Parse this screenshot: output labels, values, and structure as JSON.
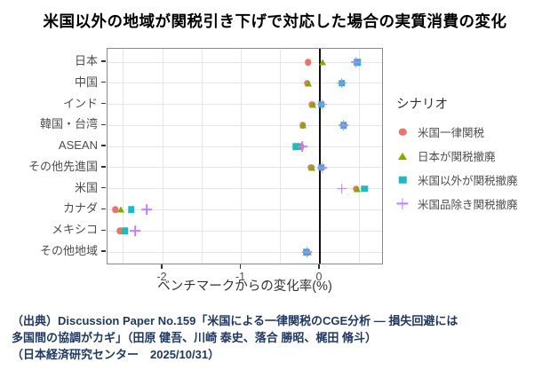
{
  "title": "米国以外の地域が関税引き下げで対応した場合の実質消費の変化",
  "chart_data": {
    "type": "scatter",
    "orientation": "horizontal-dotplot",
    "categories": [
      "日本",
      "中国",
      "インド",
      "韓国・台湾",
      "ASEAN",
      "その他先進国",
      "米国",
      "カナダ",
      "メキシコ",
      "その他地域"
    ],
    "series": [
      {
        "name": "米国一律関税",
        "marker": "circle",
        "color": "#e8746c",
        "values": [
          -0.15,
          -0.16,
          -0.1,
          -0.22,
          -0.24,
          -0.11,
          0.46,
          -2.6,
          -2.54,
          -0.16
        ]
      },
      {
        "name": "日本が関税撤廃",
        "marker": "triangle",
        "color": "#7cae00",
        "values": [
          0.03,
          -0.15,
          -0.09,
          -0.21,
          -0.25,
          -0.1,
          0.48,
          -2.53,
          -2.5,
          -0.15
        ]
      },
      {
        "name": "米国以外が関税撤廃",
        "marker": "square",
        "color": "#1fb9c2",
        "values": [
          0.48,
          0.28,
          0.02,
          0.3,
          -0.3,
          0.02,
          0.57,
          -2.4,
          -2.48,
          -0.17
        ]
      },
      {
        "name": "米国品除き関税撤廃",
        "marker": "plus",
        "color": "#c77cff",
        "values": [
          0.46,
          0.28,
          0.03,
          0.3,
          -0.22,
          0.03,
          0.28,
          -2.2,
          -2.35,
          -0.16
        ]
      }
    ],
    "xlabel": "ベンチマークからの変化率(%)",
    "x_ticks": [
      "-2",
      "-1",
      "0"
    ],
    "x_tick_values": [
      -2,
      -1,
      0
    ],
    "xlim": [
      -2.7,
      0.81
    ],
    "grid_step": 0.5,
    "zero_line": true,
    "grid": true,
    "legend_title": "シナリオ",
    "legend_position": "right"
  },
  "caption": {
    "lines": [
      "（出典）Discussion Paper No.159「米国による一律関税のCGE分析 — 損失回避には",
      "多国間の協調がカギ」（田原 健吾、川崎 泰史、落合 勝昭、梶田 脩斗）",
      "（日本経済研究センター　2025/10/31）"
    ]
  }
}
